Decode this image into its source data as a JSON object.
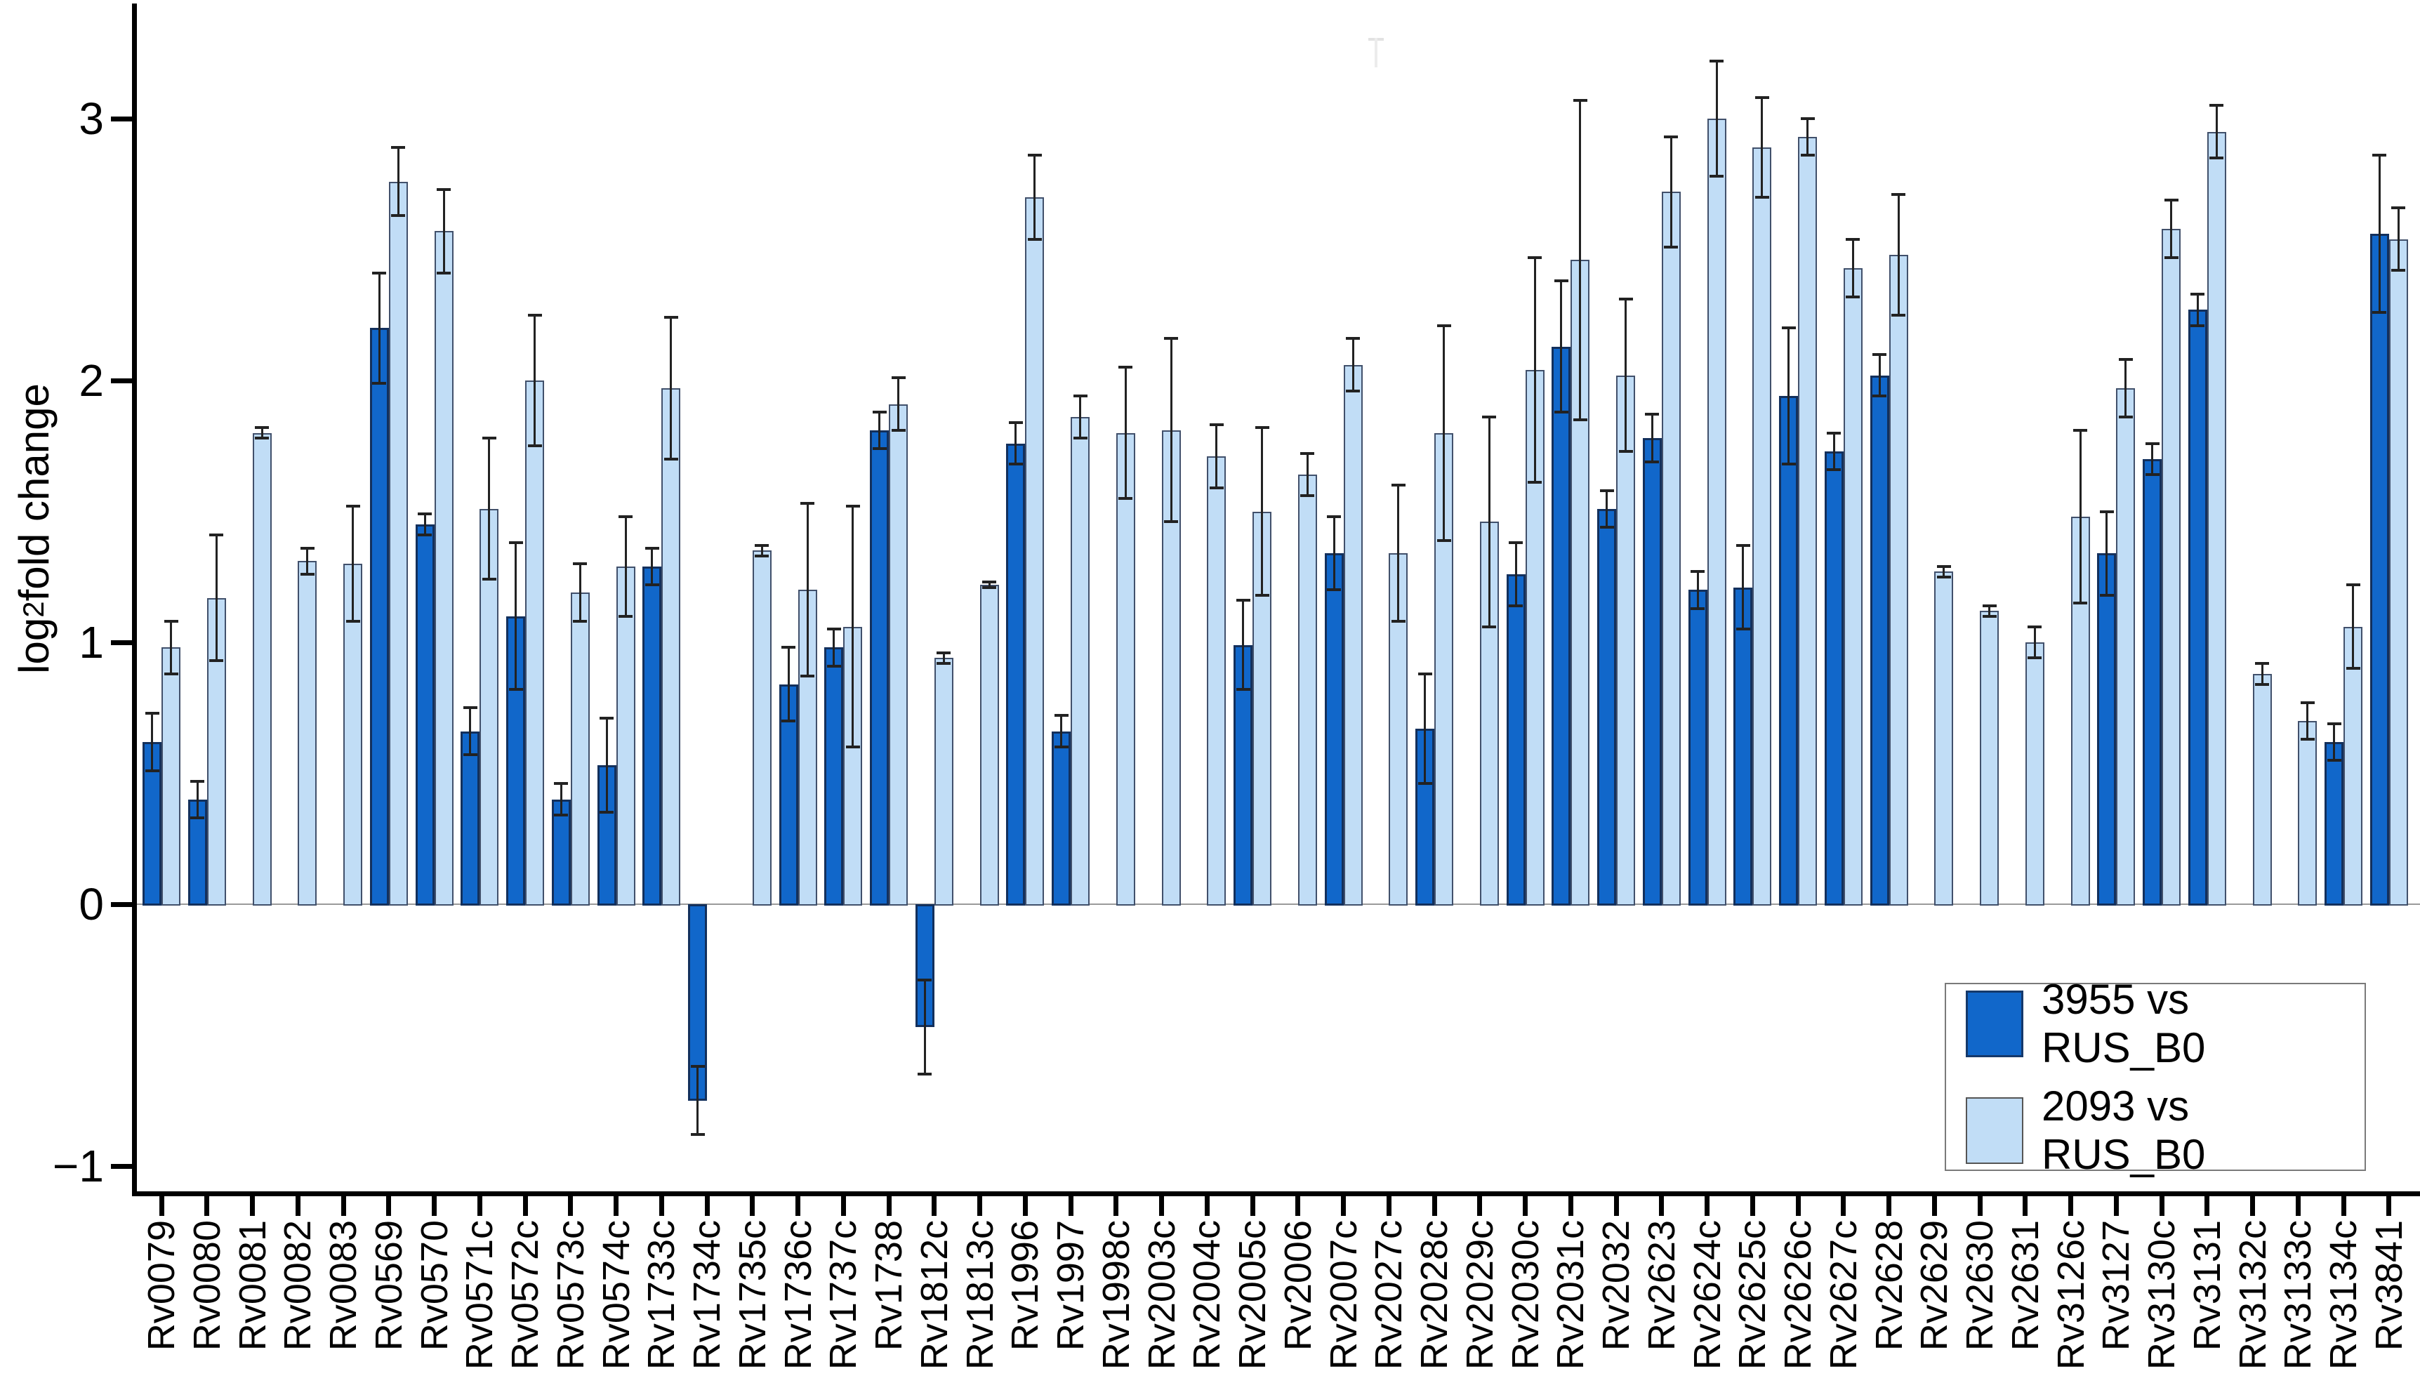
{
  "figure": {
    "background": "#ffffff"
  },
  "chart_data": {
    "type": "bar",
    "title": "",
    "xlabel": "",
    "ylabel": "log2 fold change",
    "ylabel_parts": {
      "prefix": "log",
      "sub": "2",
      "suffix": " fold change"
    },
    "ylim": [
      -1.1,
      3.44
    ],
    "yticks": [
      {
        "v": 3,
        "label": "3"
      },
      {
        "v": 2,
        "label": "2"
      },
      {
        "v": 1,
        "label": "1"
      },
      {
        "v": 0,
        "label": "0"
      },
      {
        "v": -1,
        "label": "−1"
      }
    ],
    "grid": false,
    "error_bars": true,
    "legend_position": "bottom-right",
    "categories": [
      "Rv0079",
      "Rv0080",
      "Rv0081",
      "Rv0082",
      "Rv0083",
      "Rv0569",
      "Rv0570",
      "Rv0571c",
      "Rv0572c",
      "Rv0573c",
      "Rv0574c",
      "Rv1733c",
      "Rv1734c",
      "Rv1735c",
      "Rv1736c",
      "Rv1737c",
      "Rv1738",
      "Rv1812c",
      "Rv1813c",
      "Rv1996",
      "Rv1997",
      "Rv1998c",
      "Rv2003c",
      "Rv2004c",
      "Rv2005c",
      "Rv2006",
      "Rv2007c",
      "Rv2027c",
      "Rv2028c",
      "Rv2029c",
      "Rv2030c",
      "Rv2031c",
      "Rv2032",
      "Rv2623",
      "Rv2624c",
      "Rv2625c",
      "Rv2626c",
      "Rv2627c",
      "Rv2628",
      "Rv2629",
      "Rv2630",
      "Rv2631",
      "Rv3126c",
      "Rv3127",
      "Rv3130c",
      "Rv3131",
      "Rv3132c",
      "Rv3133c",
      "Rv3134c",
      "Rv3841"
    ],
    "series": [
      {
        "name": "3955 vs RUS_B0",
        "color": "#1167ca",
        "values": [
          0.62,
          0.4,
          null,
          null,
          null,
          2.2,
          1.45,
          0.66,
          1.1,
          0.4,
          0.53,
          1.29,
          -0.75,
          null,
          0.84,
          0.98,
          1.81,
          -0.47,
          null,
          1.76,
          0.66,
          null,
          null,
          null,
          0.99,
          null,
          1.34,
          null,
          0.67,
          null,
          1.26,
          2.13,
          1.51,
          1.78,
          1.2,
          1.21,
          1.94,
          1.73,
          2.02,
          null,
          null,
          null,
          null,
          1.34,
          1.7,
          2.27,
          null,
          null,
          0.62,
          2.56
        ],
        "errors": [
          0.11,
          0.07,
          null,
          null,
          null,
          0.21,
          0.04,
          0.09,
          0.28,
          0.06,
          0.18,
          0.07,
          0.13,
          null,
          0.14,
          0.07,
          0.07,
          0.18,
          null,
          0.08,
          0.06,
          null,
          null,
          null,
          0.17,
          null,
          0.14,
          null,
          0.21,
          null,
          0.12,
          0.25,
          0.07,
          0.09,
          0.07,
          0.16,
          0.26,
          0.07,
          0.08,
          null,
          null,
          null,
          null,
          0.16,
          0.06,
          0.06,
          null,
          null,
          0.07,
          0.3
        ]
      },
      {
        "name": "2093 vs RUS_B0",
        "color": "#c1ddf6",
        "values": [
          0.98,
          1.17,
          1.8,
          1.31,
          1.3,
          2.76,
          2.57,
          1.51,
          2.0,
          1.19,
          1.29,
          1.97,
          null,
          1.35,
          1.2,
          1.06,
          1.91,
          0.94,
          1.22,
          2.7,
          1.86,
          1.8,
          1.81,
          1.71,
          1.5,
          1.64,
          2.06,
          1.34,
          1.8,
          1.46,
          2.04,
          2.46,
          2.02,
          2.72,
          3.0,
          2.89,
          2.93,
          2.43,
          2.48,
          1.27,
          1.12,
          1.0,
          1.48,
          1.97,
          2.58,
          2.95,
          0.88,
          0.7,
          1.06,
          2.54
        ],
        "errors": [
          0.1,
          0.24,
          0.02,
          0.05,
          0.22,
          0.13,
          0.16,
          0.27,
          0.25,
          0.11,
          0.19,
          0.27,
          null,
          0.02,
          0.33,
          0.46,
          0.1,
          0.02,
          0.01,
          0.16,
          0.08,
          0.25,
          0.35,
          0.12,
          0.32,
          0.08,
          0.1,
          0.26,
          0.41,
          0.4,
          0.43,
          0.61,
          0.29,
          0.21,
          0.22,
          0.19,
          0.07,
          0.11,
          0.23,
          0.02,
          0.02,
          0.06,
          0.33,
          0.11,
          0.11,
          0.1,
          0.04,
          0.07,
          0.16,
          0.12
        ]
      }
    ]
  }
}
